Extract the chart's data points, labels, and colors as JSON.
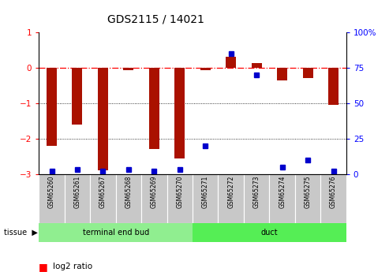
{
  "title": "GDS2115 / 14021",
  "samples": [
    "GSM65260",
    "GSM65261",
    "GSM65267",
    "GSM65268",
    "GSM65269",
    "GSM65270",
    "GSM65271",
    "GSM65272",
    "GSM65273",
    "GSM65274",
    "GSM65275",
    "GSM65276"
  ],
  "log2": [
    -2.2,
    -1.6,
    -2.9,
    -0.07,
    -2.3,
    -2.55,
    -0.07,
    0.32,
    0.13,
    -0.35,
    -0.28,
    -1.05
  ],
  "percentile_pct": [
    2,
    3,
    2,
    3,
    2,
    3,
    20,
    85,
    70,
    5,
    10,
    2
  ],
  "bar_color": "#AA1100",
  "dot_color": "#0000CC",
  "ylim_left": [
    -3,
    1
  ],
  "ylim_right": [
    0,
    100
  ],
  "yticks_left": [
    -3,
    -2,
    -1,
    0,
    1
  ],
  "yticks_right": [
    0,
    25,
    50,
    75,
    100
  ],
  "ytick_right_labels": [
    "0",
    "25",
    "50",
    "75",
    "100%"
  ],
  "dotted_lines": [
    -1,
    -2
  ],
  "tissue_groups": [
    {
      "label": "terminal end bud",
      "start": 0,
      "end": 6,
      "color": "#90EE90"
    },
    {
      "label": "duct",
      "start": 6,
      "end": 12,
      "color": "#55EE55"
    }
  ],
  "sample_box_color": "#C8C8C8",
  "hline_color": "red",
  "hline_style": "-."
}
